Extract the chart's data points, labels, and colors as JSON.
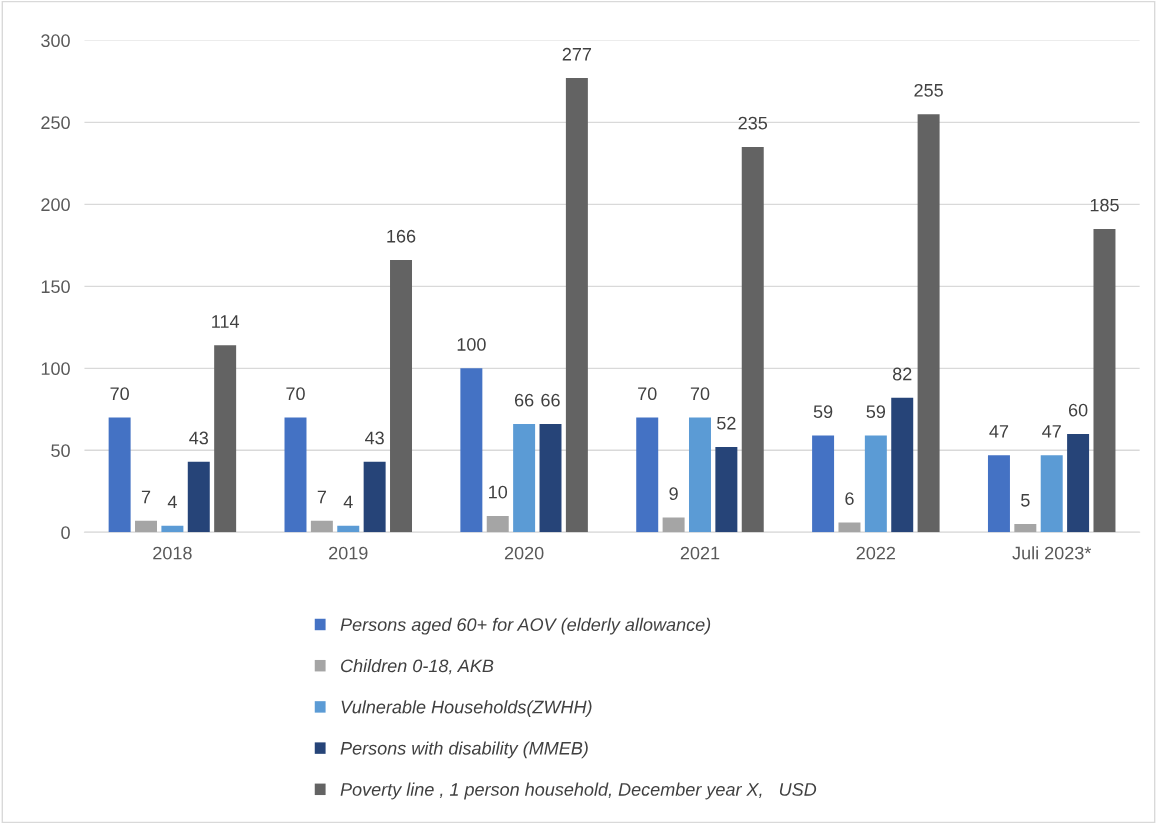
{
  "chart_data": {
    "type": "bar",
    "categories": [
      "2018",
      "2019",
      "2020",
      "2021",
      "2022",
      "Juli 2023*"
    ],
    "series": [
      {
        "name": "Persons aged 60+ for AOV (elderly allowance)",
        "color": "#4472c4",
        "values": [
          70,
          70,
          100,
          70,
          59,
          47
        ]
      },
      {
        "name": "Children 0-18, AKB",
        "color": "#a5a5a5",
        "values": [
          7,
          7,
          10,
          9,
          6,
          5
        ]
      },
      {
        "name": "Vulnerable Households(ZWHH)",
        "color": "#5b9bd5",
        "values": [
          4,
          4,
          66,
          70,
          59,
          47
        ]
      },
      {
        "name": "Persons with disability (MMEB)",
        "color": "#264478",
        "values": [
          43,
          43,
          66,
          52,
          82,
          60
        ]
      },
      {
        "name": "Poverty line , 1 person household, December year X,   USD",
        "color": "#636363",
        "values": [
          114,
          166,
          277,
          235,
          255,
          185
        ]
      }
    ],
    "ylim": [
      0,
      300
    ],
    "yticks": [
      0,
      50,
      100,
      150,
      200,
      250,
      300
    ],
    "grid": "y",
    "legend": "bottom",
    "data_labels": true
  }
}
